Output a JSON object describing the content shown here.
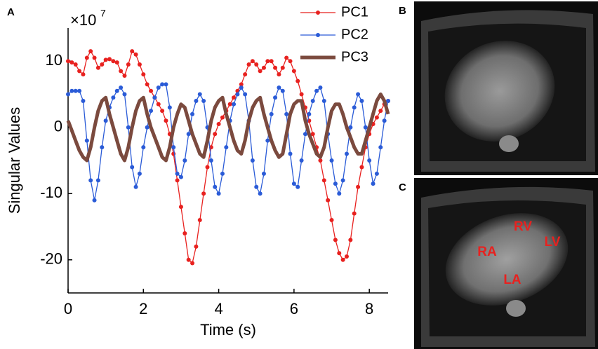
{
  "chart_data": {
    "type": "line",
    "panel_labels": [
      "A",
      "B",
      "C"
    ],
    "x_label": "Time (s)",
    "y_label": "Singular Values",
    "y_scale_label": "×10",
    "y_scale_exponent": "7",
    "legend": "upper right",
    "xlim": [
      0,
      8.5
    ],
    "ylim": [
      -25,
      15
    ],
    "xticks": [
      0,
      2,
      4,
      6,
      8
    ],
    "yticks": [
      10,
      0,
      -10,
      -20
    ],
    "x": [
      0,
      0.1,
      0.2,
      0.3,
      0.4,
      0.5,
      0.6,
      0.7,
      0.8,
      0.9,
      1,
      1.1,
      1.2,
      1.3,
      1.4,
      1.5,
      1.6,
      1.7,
      1.8,
      1.9,
      2,
      2.1,
      2.2,
      2.3,
      2.4,
      2.5,
      2.6,
      2.7,
      2.8,
      2.9,
      3,
      3.1,
      3.2,
      3.3,
      3.4,
      3.5,
      3.6,
      3.7,
      3.8,
      3.9,
      4,
      4.1,
      4.2,
      4.3,
      4.4,
      4.5,
      4.6,
      4.7,
      4.8,
      4.9,
      5,
      5.1,
      5.2,
      5.3,
      5.4,
      5.5,
      5.6,
      5.7,
      5.8,
      5.9,
      6,
      6.1,
      6.2,
      6.3,
      6.4,
      6.5,
      6.6,
      6.7,
      6.8,
      6.9,
      7,
      7.1,
      7.2,
      7.3,
      7.4,
      7.5,
      7.6,
      7.7,
      7.8,
      7.9,
      8,
      8.1,
      8.2,
      8.3,
      8.4,
      8.5
    ],
    "series": [
      {
        "name": "PC1",
        "color": "#e8211f",
        "markers": true,
        "values": [
          10,
          9.8,
          9.5,
          8.5,
          8,
          10.5,
          11.5,
          10.5,
          9,
          9.5,
          10.2,
          10.3,
          10,
          9.8,
          8.5,
          7.8,
          9.5,
          11.5,
          11,
          9.5,
          8,
          6.5,
          5.5,
          4.5,
          3.5,
          2.5,
          1,
          -1,
          -4,
          -8,
          -12,
          -16,
          -20,
          -20.5,
          -18,
          -14,
          -10,
          -6,
          -3,
          -1,
          0.5,
          1.5,
          2.5,
          3.5,
          4.5,
          5.5,
          6.5,
          8,
          9.5,
          10,
          9.5,
          8.5,
          9,
          10,
          10,
          9,
          8,
          9,
          10.5,
          10,
          8.5,
          7,
          5,
          3,
          1,
          -1,
          -3,
          -5,
          -8,
          -11,
          -14,
          -17,
          -19,
          -20,
          -19.5,
          -17,
          -13,
          -9,
          -6,
          -3,
          -1,
          0.5,
          1.5,
          2.5,
          3.5,
          4
        ]
      },
      {
        "name": "PC2",
        "color": "#2a5bd7",
        "markers": true,
        "values": [
          5,
          5.5,
          5.5,
          5.5,
          4,
          -2,
          -8,
          -11,
          -8,
          -3,
          1,
          3,
          4.5,
          5.5,
          6,
          5,
          0,
          -6,
          -9,
          -7,
          -3,
          0,
          2.5,
          4.5,
          6,
          6.5,
          6.5,
          3,
          -3,
          -7,
          -7.5,
          -5,
          -1,
          2,
          4,
          5,
          4,
          0,
          -5,
          -9,
          -10,
          -7,
          -3,
          1,
          3.5,
          5,
          6,
          5,
          1,
          -5,
          -9,
          -10,
          -7,
          -2,
          2,
          4.5,
          6,
          5.5,
          2,
          -4,
          -8.5,
          -9,
          -5,
          -1,
          2,
          4,
          5.5,
          6,
          4,
          -1,
          -5,
          -8.5,
          -10,
          -8,
          -4,
          0,
          3,
          5,
          4,
          0,
          -5,
          -8.5,
          -7,
          -3,
          1,
          4
        ]
      },
      {
        "name": "PC3",
        "color": "#7b4a3e",
        "markers": false,
        "values": [
          1,
          -0.5,
          -2,
          -3.5,
          -4.5,
          -5,
          -3,
          0,
          2.5,
          4,
          4.5,
          2,
          0,
          -2,
          -4,
          -5,
          -3,
          0,
          2.5,
          4,
          4.5,
          2,
          0,
          -1.5,
          -3,
          -4.5,
          -5,
          -3,
          0,
          2,
          3.5,
          3,
          1,
          -1,
          -2.5,
          -4,
          -4.5,
          -2,
          1,
          3,
          4,
          4.5,
          2,
          0,
          -2,
          -3.5,
          -4,
          -2,
          1,
          3,
          4,
          4.5,
          2,
          0,
          -2,
          -3.5,
          -4.5,
          -4,
          -1,
          2,
          3.5,
          4,
          4,
          1,
          -1,
          -2.5,
          -4,
          -4.5,
          -3,
          0,
          2.5,
          3.5,
          3.5,
          2,
          0,
          -1.5,
          -3,
          -4,
          -4,
          -2,
          0,
          2,
          4,
          5,
          4,
          2
        ]
      }
    ],
    "image_labels": [
      "RV",
      "LV",
      "RA",
      "LA"
    ]
  }
}
